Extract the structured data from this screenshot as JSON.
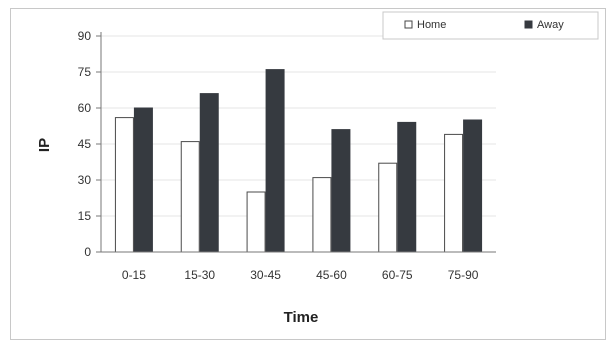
{
  "chart_data": {
    "type": "bar",
    "categories": [
      "0-15",
      "15-30",
      "30-45",
      "45-60",
      "60-75",
      "75-90"
    ],
    "series": [
      {
        "name": "Home",
        "values": [
          56,
          46,
          25,
          31,
          37,
          49
        ],
        "color": "#ffffff"
      },
      {
        "name": "Away",
        "values": [
          60,
          66,
          76,
          51,
          54,
          55
        ],
        "color": "#363a40"
      }
    ],
    "xlabel": "Time",
    "ylabel": "IP",
    "ylim": [
      0,
      90
    ],
    "yticks": [
      0,
      15,
      30,
      45,
      60,
      75,
      90
    ],
    "grid": true,
    "legend_position": "top-right"
  }
}
